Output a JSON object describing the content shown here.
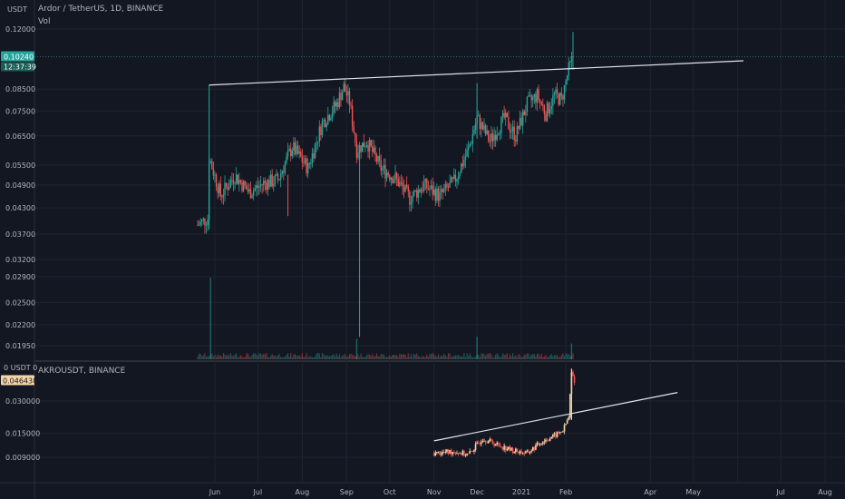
{
  "top_panel": {
    "symbol_title": "Ardor / TetherUS, 1D, BINANCE",
    "volume_label": "Vol",
    "currency_unit": "USDT",
    "current_price": "0.10240",
    "countdown": "12:37:39",
    "price_color": "#26a69a"
  },
  "bottom_panel": {
    "symbol_title": "AKROUSDT, BINANCE",
    "unit_label": "0 USDT 0",
    "current_price": "0.046438",
    "price_color": "#f5d5a8"
  },
  "colors": {
    "background": "#131722",
    "up": "#26a69a",
    "down": "#ef5350",
    "grid": "#1f2330",
    "trendline": "#e0e3eb",
    "bottom_up": "#f5d5a8",
    "bottom_down": "#ef5350"
  },
  "chart_data": [
    {
      "type": "candlestick",
      "title": "Ardor / TetherUS, 1D, BINANCE",
      "scale": "log",
      "y_ticks": [
        "0.12000",
        "0.08500",
        "0.07500",
        "0.06500",
        "0.05500",
        "0.04900",
        "0.04300",
        "0.03700",
        "0.03200",
        "0.02900",
        "0.02500",
        "0.02200",
        "0.01950"
      ],
      "x_ticks": [
        "Jun",
        "Jul",
        "Aug",
        "Sep",
        "Oct",
        "Nov",
        "Dec",
        "2021",
        "Feb",
        "Apr",
        "May",
        "Jul",
        "Aug"
      ],
      "close_path": [
        [
          "2020-05-20",
          0.039
        ],
        [
          "2020-05-27",
          0.0405
        ],
        [
          "2020-05-28",
          0.0575
        ],
        [
          "2020-06-05",
          0.0462
        ],
        [
          "2020-06-15",
          0.0518
        ],
        [
          "2020-06-25",
          0.047
        ],
        [
          "2020-07-05",
          0.0495
        ],
        [
          "2020-07-15",
          0.0505
        ],
        [
          "2020-07-25",
          0.061
        ],
        [
          "2020-08-05",
          0.054
        ],
        [
          "2020-08-15",
          0.07
        ],
        [
          "2020-08-25",
          0.078
        ],
        [
          "2020-08-30",
          0.086
        ],
        [
          "2020-09-03",
          0.079
        ],
        [
          "2020-09-08",
          0.06
        ],
        [
          "2020-09-15",
          0.063
        ],
        [
          "2020-09-25",
          0.054
        ],
        [
          "2020-10-05",
          0.051
        ],
        [
          "2020-10-15",
          0.0455
        ],
        [
          "2020-10-25",
          0.049
        ],
        [
          "2020-11-05",
          0.046
        ],
        [
          "2020-11-15",
          0.05
        ],
        [
          "2020-11-25",
          0.06
        ],
        [
          "2020-12-01",
          0.072
        ],
        [
          "2020-12-10",
          0.063
        ],
        [
          "2020-12-20",
          0.072
        ],
        [
          "2020-12-28",
          0.065
        ],
        [
          "2021-01-05",
          0.078
        ],
        [
          "2021-01-12",
          0.082
        ],
        [
          "2021-01-18",
          0.074
        ],
        [
          "2021-01-24",
          0.082
        ],
        [
          "2021-01-29",
          0.08
        ],
        [
          "2021-02-03",
          0.095
        ],
        [
          "2021-02-06",
          0.1024
        ]
      ],
      "volume_spikes": [
        [
          "2020-05-29",
          3.6
        ],
        [
          "2020-09-08",
          0.9
        ],
        [
          "2020-12-01",
          1.0
        ],
        [
          "2021-02-05",
          0.7
        ]
      ],
      "trendline": {
        "from": [
          "2020-05-28",
          0.087
        ],
        "to": [
          "2021-06-05",
          0.1
        ]
      },
      "last_price": 0.1024
    },
    {
      "type": "candlestick",
      "title": "AKROUSDT, BINANCE",
      "scale": "log",
      "y_ticks": [
        "0.030000",
        "0.015000",
        "0.009000"
      ],
      "close_path": [
        [
          "2020-11-01",
          0.0098
        ],
        [
          "2020-11-15",
          0.0102
        ],
        [
          "2020-11-25",
          0.0095
        ],
        [
          "2020-12-05",
          0.0135
        ],
        [
          "2020-12-15",
          0.0118
        ],
        [
          "2020-12-25",
          0.0105
        ],
        [
          "2021-01-05",
          0.0098
        ],
        [
          "2021-01-15",
          0.0125
        ],
        [
          "2021-01-25",
          0.0145
        ],
        [
          "2021-01-30",
          0.016
        ],
        [
          "2021-02-03",
          0.021
        ],
        [
          "2021-02-05",
          0.055
        ],
        [
          "2021-02-07",
          0.0464
        ]
      ],
      "trendline": {
        "from": [
          "2020-11-01",
          0.0128
        ],
        "to": [
          "2021-04-20",
          0.036
        ]
      },
      "last_price": 0.046438
    }
  ]
}
